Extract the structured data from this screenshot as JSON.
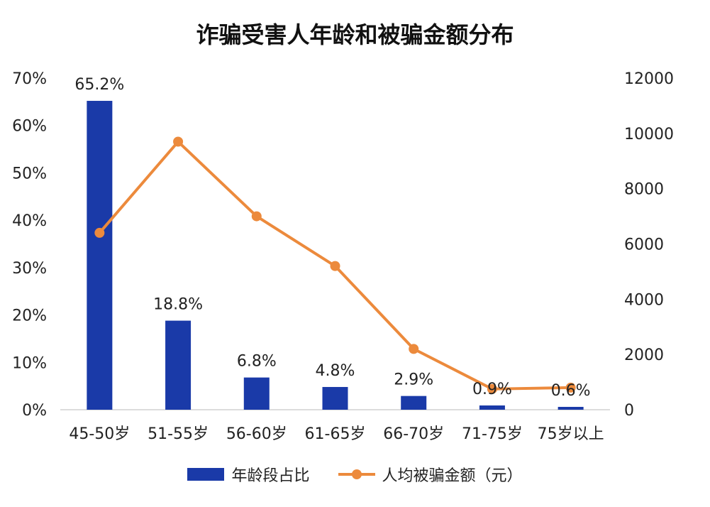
{
  "chart_data": {
    "type": "bar+line",
    "title": "诈骗受害人年龄和被骗金额分布",
    "categories": [
      "45-50岁",
      "51-55岁",
      "56-60岁",
      "61-65岁",
      "66-70岁",
      "71-75岁",
      "75岁以上"
    ],
    "series": [
      {
        "name": "年龄段占比",
        "kind": "bar",
        "axis": "left",
        "values": [
          65.2,
          18.8,
          6.8,
          4.8,
          2.9,
          0.9,
          0.6
        ],
        "labels": [
          "65.2%",
          "18.8%",
          "6.8%",
          "4.8%",
          "2.9%",
          "0.9%",
          "0.6%"
        ],
        "color": "#1a3aa8"
      },
      {
        "name": "人均被骗金额（元）",
        "kind": "line",
        "axis": "right",
        "values": [
          6400,
          9700,
          7000,
          5200,
          2200,
          750,
          800
        ],
        "color": "#ec8a3c"
      }
    ],
    "y_left": {
      "min": 0,
      "max": 70,
      "ticks": [
        "0%",
        "10%",
        "20%",
        "30%",
        "40%",
        "50%",
        "60%",
        "70%"
      ]
    },
    "y_right": {
      "min": 0,
      "max": 12000,
      "ticks": [
        "0",
        "2000",
        "4000",
        "6000",
        "8000",
        "10000",
        "12000"
      ]
    },
    "grid": false,
    "legend_position": "bottom"
  }
}
